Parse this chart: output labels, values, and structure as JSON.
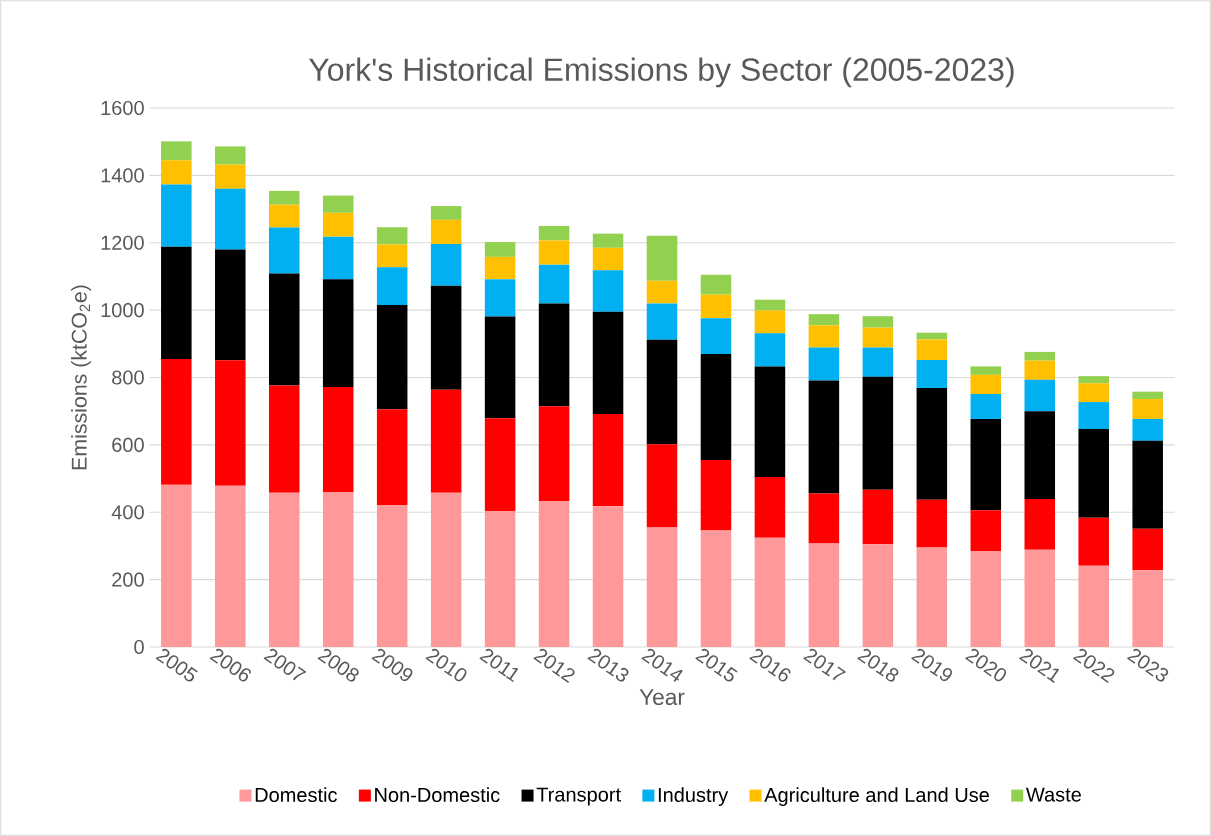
{
  "chart_data": {
    "type": "bar",
    "stacked": true,
    "title": "York's Historical Emissions by Sector (2005-2023)",
    "xlabel": "Year",
    "ylabel": "Emissions (ktCO$_{2}$e)",
    "categories": [
      "2005",
      "2006",
      "2007",
      "2008",
      "2009",
      "2010",
      "2011",
      "2012",
      "2013",
      "2014",
      "2015",
      "2016",
      "2017",
      "2018",
      "2019",
      "2020",
      "2021",
      "2022",
      "2023"
    ],
    "series": [
      {
        "name": "Domestic",
        "color": "#ff9999",
        "values": [
          482,
          479,
          458,
          460,
          421,
          458,
          403,
          433,
          418,
          355,
          346,
          324,
          307,
          305,
          295,
          285,
          289,
          241,
          228
        ]
      },
      {
        "name": "Non-Domestic",
        "color": "#ff0000",
        "values": [
          373,
          372,
          318,
          312,
          285,
          306,
          276,
          282,
          274,
          247,
          209,
          181,
          149,
          162,
          142,
          121,
          150,
          143,
          123
        ]
      },
      {
        "name": "Transport",
        "color": "#000000",
        "values": [
          333,
          329,
          333,
          320,
          309,
          308,
          302,
          305,
          303,
          310,
          315,
          328,
          335,
          335,
          332,
          271,
          261,
          263,
          261
        ]
      },
      {
        "name": "Industry",
        "color": "#00b0f0",
        "values": [
          185,
          180,
          136,
          126,
          112,
          124,
          111,
          115,
          123,
          108,
          106,
          98,
          98,
          87,
          83,
          74,
          93,
          80,
          65
        ]
      },
      {
        "name": "Agriculture and Land Use",
        "color": "#ffc000",
        "values": [
          72,
          72,
          68,
          71,
          68,
          72,
          66,
          72,
          67,
          67,
          70,
          68,
          66,
          59,
          61,
          57,
          57,
          56,
          59
        ]
      },
      {
        "name": "Waste",
        "color": "#92d050",
        "values": [
          56,
          54,
          41,
          51,
          51,
          41,
          44,
          43,
          42,
          134,
          59,
          32,
          33,
          34,
          20,
          25,
          26,
          21,
          22
        ]
      }
    ],
    "ylim": [
      0,
      1600
    ],
    "yticks": [
      0,
      200,
      400,
      600,
      800,
      1000,
      1200,
      1400,
      1600
    ],
    "grid": "y",
    "legend": "bottom"
  }
}
